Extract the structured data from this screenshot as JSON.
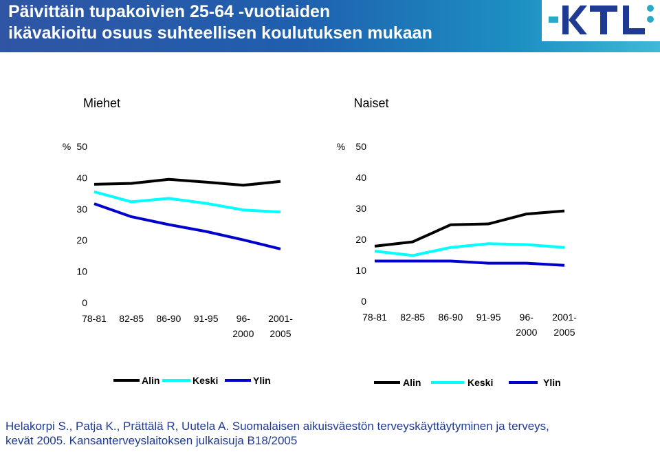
{
  "slide": {
    "title_line1": "Päivittäin tupakoivien 25-64 -vuotiaiden",
    "title_line2": "ikävakioitu osuus suhteellisen koulutuksen mukaan",
    "logo_text": "KTL",
    "citation_line1": "Helakorpi S., Patja K., Prättälä R, Uutela A. Suomalaisen aikuisväestön terveyskäyttäytyminen ja terveys,",
    "citation_line2": "kevät 2005. Kansanterveyslaitoksen julkaisuja B18/2005"
  },
  "colors": {
    "header_start": "#2f55a4",
    "header_end": "#3fb9d6",
    "citation": "#1f3a93",
    "logo": "#1f3a93",
    "logo_accent": "#2aa8c8"
  },
  "chart_data": [
    {
      "type": "line",
      "title": "Miehet",
      "ylabel": "%",
      "ylim": [
        0,
        50
      ],
      "yticks": [
        "0",
        "10",
        "20",
        "30",
        "40",
        "50"
      ],
      "categories": [
        [
          "78-81"
        ],
        [
          "82-85"
        ],
        [
          "86-90"
        ],
        [
          "91-95"
        ],
        [
          "96-",
          "2000"
        ],
        [
          "2001-",
          "2005"
        ]
      ],
      "series": [
        {
          "name": "Alin",
          "color": "#000000",
          "values": [
            37.9,
            38.2,
            39.5,
            38.6,
            37.6,
            38.8
          ]
        },
        {
          "name": "Keski",
          "color": "#00ffff",
          "values": [
            35.5,
            32.3,
            33.4,
            31.8,
            29.7,
            29.0
          ]
        },
        {
          "name": "Ylin",
          "color": "#0000cc",
          "values": [
            31.7,
            27.5,
            25.0,
            22.8,
            20.1,
            17.2
          ]
        }
      ],
      "legend": "bottom"
    },
    {
      "type": "line",
      "title": "Naiset",
      "ylabel": "%",
      "ylim": [
        0,
        50
      ],
      "yticks": [
        "0",
        "10",
        "20",
        "30",
        "40",
        "50"
      ],
      "categories": [
        [
          "78-81"
        ],
        [
          "82-85"
        ],
        [
          "86-90"
        ],
        [
          "91-95"
        ],
        [
          "96-",
          "2000"
        ],
        [
          "2001-",
          "2005"
        ]
      ],
      "series": [
        {
          "name": "Alin",
          "color": "#000000",
          "values": [
            17.8,
            19.2,
            24.7,
            25.0,
            28.2,
            29.2
          ]
        },
        {
          "name": "Keski",
          "color": "#00ffff",
          "values": [
            16.2,
            14.8,
            17.4,
            18.6,
            18.3,
            17.4
          ]
        },
        {
          "name": "Ylin",
          "color": "#0000cc",
          "values": [
            13.0,
            13.0,
            13.0,
            12.3,
            12.3,
            11.6
          ]
        }
      ],
      "legend": "bottom"
    }
  ]
}
